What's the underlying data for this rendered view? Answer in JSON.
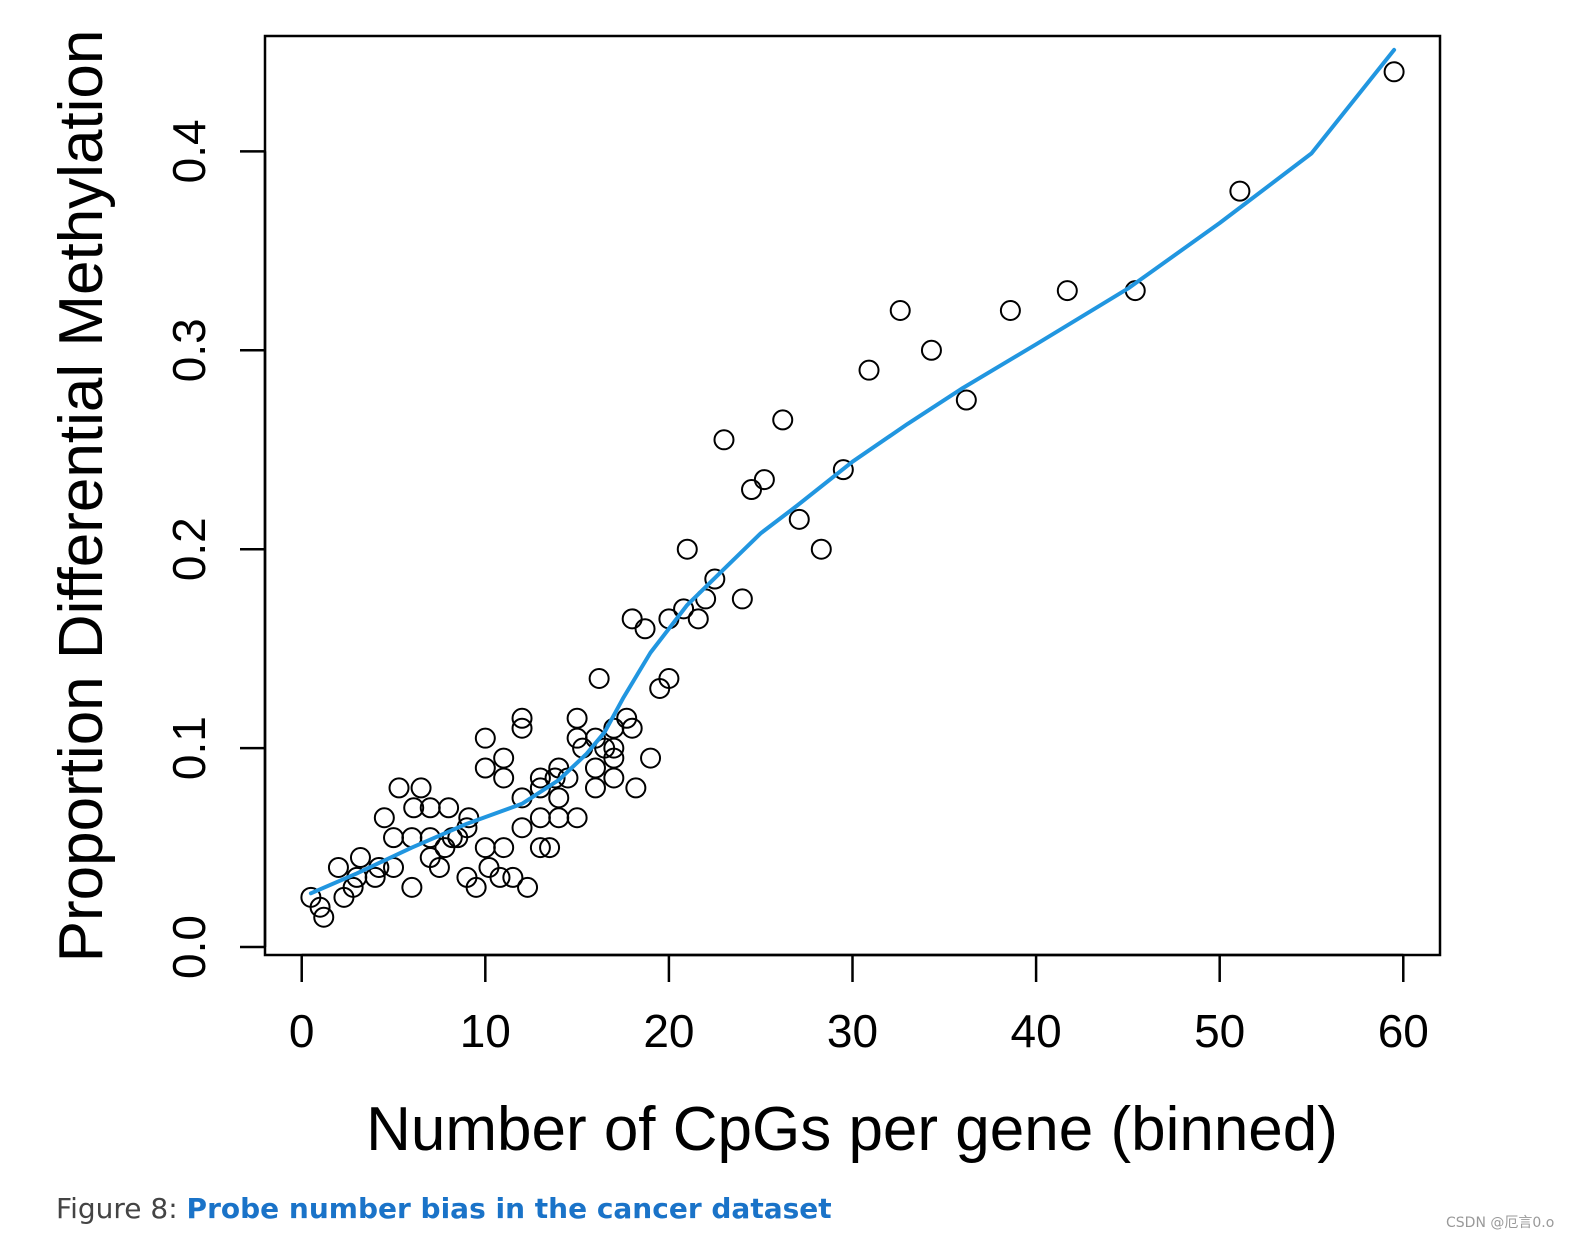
{
  "chart_data": {
    "type": "scatter",
    "xlabel": "Number of CpGs per gene (binned)",
    "ylabel": "Proportion Differential Methylation",
    "xlim": [
      -2,
      62
    ],
    "ylim": [
      -0.004,
      0.458
    ],
    "xticks": [
      0,
      10,
      20,
      30,
      40,
      50,
      60
    ],
    "yticks": [
      0.0,
      0.1,
      0.2,
      0.3,
      0.4
    ],
    "xtick_labels": [
      "0",
      "10",
      "20",
      "30",
      "40",
      "50",
      "60"
    ],
    "ytick_labels": [
      "0.0",
      "0.1",
      "0.2",
      "0.3",
      "0.4"
    ],
    "line_color": "#2196e0",
    "points": {
      "x": [
        0.5,
        1.0,
        1.2,
        2.0,
        2.3,
        2.8,
        3.0,
        3.2,
        4.0,
        4.2,
        4.5,
        5.0,
        5.0,
        5.3,
        6.0,
        6.0,
        6.1,
        6.5,
        7.0,
        7.0,
        7.0,
        7.5,
        7.8,
        8.0,
        8.2,
        8.5,
        9.0,
        9.0,
        9.1,
        9.5,
        10.0,
        10.0,
        10.0,
        10.2,
        10.8,
        11.0,
        11.0,
        11.0,
        11.5,
        12.0,
        12.0,
        12.0,
        12.0,
        12.3,
        13.0,
        13.0,
        13.0,
        13.0,
        13.5,
        13.8,
        14.0,
        14.0,
        14.0,
        14.5,
        15.0,
        15.0,
        15.0,
        15.3,
        16.0,
        16.0,
        16.0,
        16.2,
        16.5,
        17.0,
        17.0,
        17.0,
        17.0,
        17.7,
        18.0,
        18.0,
        18.2,
        18.7,
        19.0,
        19.5,
        20.0,
        20.0,
        20.8,
        21.0,
        21.6,
        22.0,
        22.5,
        23.0,
        24.0,
        24.5,
        25.2,
        26.2,
        27.1,
        28.3,
        29.5,
        30.9,
        32.6,
        34.3,
        36.2,
        38.6,
        41.7,
        45.4,
        51.1,
        59.5
      ],
      "y": [
        0.025,
        0.02,
        0.015,
        0.04,
        0.025,
        0.03,
        0.035,
        0.045,
        0.035,
        0.04,
        0.065,
        0.04,
        0.055,
        0.08,
        0.03,
        0.055,
        0.07,
        0.08,
        0.045,
        0.055,
        0.07,
        0.04,
        0.05,
        0.07,
        0.055,
        0.055,
        0.035,
        0.06,
        0.065,
        0.03,
        0.05,
        0.09,
        0.105,
        0.04,
        0.035,
        0.05,
        0.085,
        0.095,
        0.035,
        0.06,
        0.075,
        0.11,
        0.115,
        0.03,
        0.05,
        0.065,
        0.08,
        0.085,
        0.05,
        0.085,
        0.065,
        0.075,
        0.09,
        0.085,
        0.065,
        0.105,
        0.115,
        0.1,
        0.08,
        0.09,
        0.105,
        0.135,
        0.1,
        0.085,
        0.095,
        0.1,
        0.11,
        0.115,
        0.11,
        0.165,
        0.08,
        0.16,
        0.095,
        0.13,
        0.135,
        0.165,
        0.17,
        0.2,
        0.165,
        0.175,
        0.185,
        0.255,
        0.175,
        0.23,
        0.235,
        0.265,
        0.215,
        0.2,
        0.24,
        0.29,
        0.32,
        0.3,
        0.275,
        0.32,
        0.33,
        0.33,
        0.38,
        0.44
      ]
    },
    "smooth_line": {
      "x": [
        0.5,
        3,
        6,
        9,
        12,
        14,
        15.5,
        16.5,
        17.5,
        19,
        21,
        23,
        25,
        27,
        30,
        33,
        36,
        40,
        45,
        50,
        55,
        59.5
      ],
      "y": [
        0.027,
        0.037,
        0.05,
        0.062,
        0.072,
        0.084,
        0.097,
        0.108,
        0.125,
        0.148,
        0.172,
        0.19,
        0.208,
        0.222,
        0.244,
        0.263,
        0.281,
        0.303,
        0.331,
        0.364,
        0.399,
        0.451
      ]
    }
  },
  "caption": {
    "prefix": "Figure 8: ",
    "title": "Probe number bias in the cancer dataset"
  },
  "watermark": "CSDN @厄言0.o"
}
